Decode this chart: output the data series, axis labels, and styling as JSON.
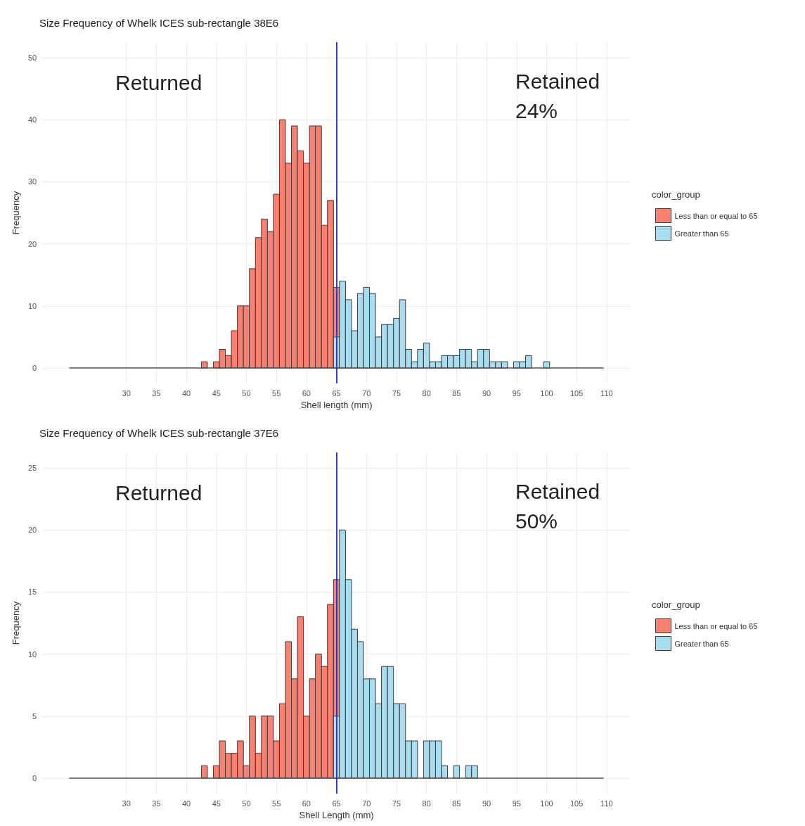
{
  "chart_data": [
    {
      "type": "histogram",
      "title": "Size Frequency of Whelk ICES sub-rectangle 38E6",
      "xlabel": "Shell length (mm)",
      "ylabel": "Frequency",
      "legend_title": "color_group",
      "legend": "right",
      "grid": true,
      "bins": [
        20.5,
        21.5,
        22.5,
        23.5,
        24.5,
        25.5,
        26.5,
        27.5,
        28.5,
        29.5,
        30.5,
        31.5,
        32.5,
        33.5,
        34.5,
        35.5,
        36.5,
        37.5,
        38.5,
        39.5,
        40.5,
        41.5,
        42.5,
        43.5,
        44.5,
        45.5,
        46.5,
        47.5,
        48.5,
        49.5,
        50.5,
        51.5,
        52.5,
        53.5,
        54.5,
        55.5,
        56.5,
        57.5,
        58.5,
        59.5,
        60.5,
        61.5,
        62.5,
        63.5,
        64.5,
        65.5,
        66.5,
        67.5,
        68.5,
        69.5,
        70.5,
        71.5,
        72.5,
        73.5,
        74.5,
        75.5,
        76.5,
        77.5,
        78.5,
        79.5,
        80.5,
        81.5,
        82.5,
        83.5,
        84.5,
        85.5,
        86.5,
        87.5,
        88.5,
        89.5,
        90.5,
        91.5,
        92.5,
        93.5,
        94.5,
        95.5,
        96.5,
        97.5,
        98.5,
        99.5,
        100.5,
        101.5,
        102.5,
        103.5,
        104.5,
        105.5,
        106.5,
        107.5,
        108.5,
        109.5
      ],
      "series": [
        {
          "name": "Less than or equal to 65",
          "color": "#fa8072",
          "values": [
            0,
            0,
            0,
            0,
            0,
            0,
            0,
            0,
            0,
            0,
            0,
            0,
            0,
            0,
            0,
            0,
            0,
            0,
            0,
            0,
            0,
            0,
            1,
            0,
            1,
            3,
            2,
            6,
            10,
            10,
            16,
            21,
            24,
            22,
            28,
            40,
            33,
            39,
            35,
            33,
            39,
            39,
            23,
            27,
            13,
            0,
            0,
            0,
            0,
            0,
            0,
            0,
            0,
            0,
            0,
            0,
            0,
            0,
            0,
            0,
            0,
            0,
            0,
            0,
            0,
            0,
            0,
            0,
            0,
            0,
            0,
            0,
            0,
            0,
            0,
            0,
            0,
            0,
            0,
            0,
            0,
            0,
            0,
            0,
            0,
            0,
            0,
            0,
            0
          ]
        },
        {
          "name": "Greater than 65",
          "color": "#a8dcef",
          "values": [
            0,
            0,
            0,
            0,
            0,
            0,
            0,
            0,
            0,
            0,
            0,
            0,
            0,
            0,
            0,
            0,
            0,
            0,
            0,
            0,
            0,
            0,
            0,
            0,
            0,
            0,
            0,
            0,
            0,
            0,
            0,
            0,
            0,
            0,
            0,
            0,
            0,
            0,
            0,
            0,
            0,
            0,
            0,
            0,
            5,
            14,
            11,
            6,
            12,
            13,
            12,
            5,
            7,
            7,
            8,
            11,
            3,
            1,
            3,
            4,
            1,
            1,
            2,
            2,
            2,
            3,
            3,
            1,
            3,
            3,
            1,
            1,
            1,
            0,
            1,
            1,
            2,
            0,
            0,
            1,
            0,
            0,
            0,
            0,
            0,
            0,
            0,
            0,
            0
          ]
        }
      ],
      "xlim": [
        16,
        114
      ],
      "xticks": [
        30,
        35,
        40,
        45,
        50,
        55,
        60,
        65,
        70,
        75,
        80,
        85,
        90,
        95,
        100,
        105,
        110
      ],
      "ylim": [
        -2.5,
        52.5
      ],
      "yticks": [
        0,
        10,
        20,
        30,
        40,
        50
      ],
      "ref_lines": [
        {
          "axis": "x",
          "value": 65,
          "color": "#3535cc"
        }
      ],
      "annotations": [
        "Returned",
        "Retained\n24%"
      ]
    },
    {
      "type": "histogram",
      "title": "Size Frequency of Whelk ICES sub-rectangle 37E6",
      "xlabel": "Shell Length (mm)",
      "ylabel": "Frequency",
      "legend_title": "color_group",
      "legend": "right",
      "grid": true,
      "bins": [
        20.5,
        21.5,
        22.5,
        23.5,
        24.5,
        25.5,
        26.5,
        27.5,
        28.5,
        29.5,
        30.5,
        31.5,
        32.5,
        33.5,
        34.5,
        35.5,
        36.5,
        37.5,
        38.5,
        39.5,
        40.5,
        41.5,
        42.5,
        43.5,
        44.5,
        45.5,
        46.5,
        47.5,
        48.5,
        49.5,
        50.5,
        51.5,
        52.5,
        53.5,
        54.5,
        55.5,
        56.5,
        57.5,
        58.5,
        59.5,
        60.5,
        61.5,
        62.5,
        63.5,
        64.5,
        65.5,
        66.5,
        67.5,
        68.5,
        69.5,
        70.5,
        71.5,
        72.5,
        73.5,
        74.5,
        75.5,
        76.5,
        77.5,
        78.5,
        79.5,
        80.5,
        81.5,
        82.5,
        83.5,
        84.5,
        85.5,
        86.5,
        87.5,
        88.5,
        89.5,
        90.5,
        91.5,
        92.5,
        93.5,
        94.5,
        95.5,
        96.5,
        97.5,
        98.5,
        99.5,
        100.5,
        101.5,
        102.5,
        103.5,
        104.5,
        105.5,
        106.5,
        107.5,
        108.5,
        109.5
      ],
      "series": [
        {
          "name": "Less than or equal to 65",
          "color": "#fa8072",
          "values": [
            0,
            0,
            0,
            0,
            0,
            0,
            0,
            0,
            0,
            0,
            0,
            0,
            0,
            0,
            0,
            0,
            0,
            0,
            0,
            0,
            0,
            0,
            1,
            0,
            1,
            3,
            2,
            2,
            3,
            1,
            5,
            2,
            5,
            5,
            3,
            6,
            11,
            8,
            13,
            5,
            8,
            10,
            9,
            14,
            16,
            0,
            0,
            0,
            0,
            0,
            0,
            0,
            0,
            0,
            0,
            0,
            0,
            0,
            0,
            0,
            0,
            0,
            0,
            0,
            0,
            0,
            0,
            0,
            0,
            0,
            0,
            0,
            0,
            0,
            0,
            0,
            0,
            0,
            0,
            0,
            0,
            0,
            0,
            0,
            0,
            0,
            0,
            0,
            0
          ]
        },
        {
          "name": "Greater than 65",
          "color": "#a8dcef",
          "values": [
            0,
            0,
            0,
            0,
            0,
            0,
            0,
            0,
            0,
            0,
            0,
            0,
            0,
            0,
            0,
            0,
            0,
            0,
            0,
            0,
            0,
            0,
            0,
            0,
            0,
            0,
            0,
            0,
            0,
            0,
            0,
            0,
            0,
            0,
            0,
            0,
            0,
            0,
            0,
            0,
            0,
            0,
            0,
            0,
            5,
            20,
            16,
            12,
            11,
            8,
            8,
            6,
            9,
            9,
            6,
            6,
            3,
            3,
            0,
            3,
            3,
            3,
            1,
            0,
            1,
            0,
            1,
            1,
            0,
            0,
            0,
            0,
            0,
            0,
            0,
            0,
            0,
            0,
            0,
            0,
            0,
            0,
            0,
            0,
            0,
            0,
            0,
            0,
            0
          ]
        }
      ],
      "xlim": [
        16,
        114
      ],
      "xticks": [
        30,
        35,
        40,
        45,
        50,
        55,
        60,
        65,
        70,
        75,
        80,
        85,
        90,
        95,
        100,
        105,
        110
      ],
      "ylim": [
        -1.25,
        26.25
      ],
      "yticks": [
        0,
        5,
        10,
        15,
        20,
        25
      ],
      "ref_lines": [
        {
          "axis": "x",
          "value": 65,
          "color": "#3535cc"
        }
      ],
      "annotations": [
        "Returned",
        "Retained\n50%"
      ]
    }
  ]
}
